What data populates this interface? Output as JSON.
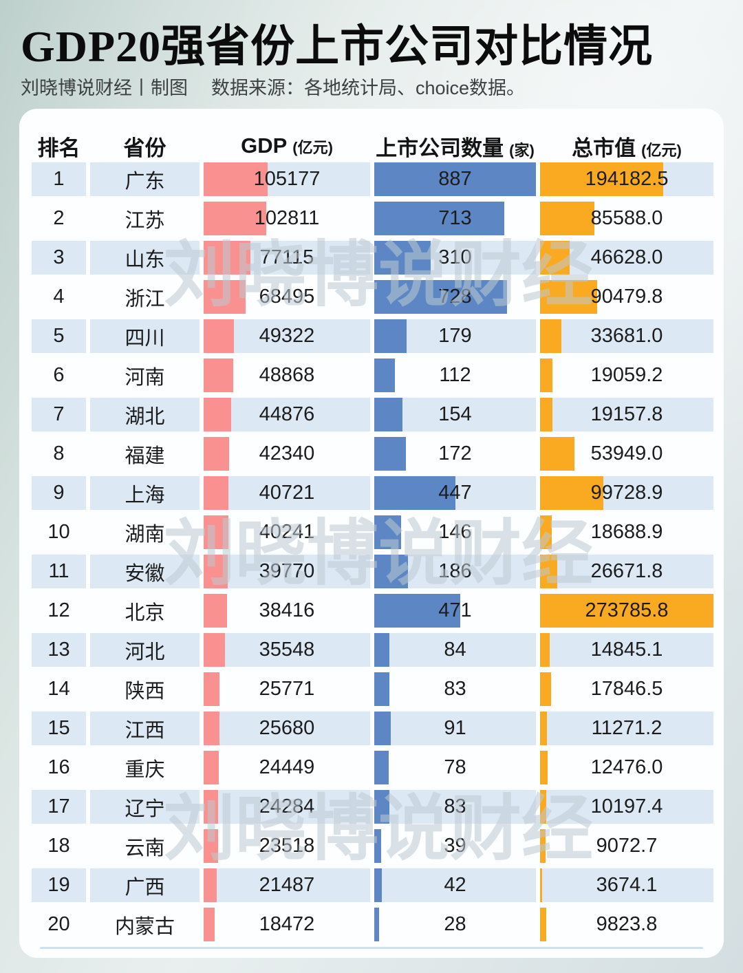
{
  "title": "GDP20强省份上市公司对比情况",
  "subtitle": {
    "author": "刘晓博说财经丨制图",
    "source": "数据来源：各地统计局、choice数据。"
  },
  "watermark": {
    "text": "刘晓博说财经"
  },
  "table_headers": {
    "rank": "排名",
    "province": "省份",
    "gdp_main": "GDP",
    "gdp_unit": "(亿元)",
    "companies_main": "上市公司数量",
    "companies_unit": "(家)",
    "market_cap_main": "总市值",
    "market_cap_unit": "(亿元)"
  },
  "colors": {
    "gdp_bar": "#f8918f",
    "companies_bar": "#5c87c4",
    "market_cap_bar": "#faaa20",
    "alt_row_background": "#dce8f4",
    "card_background": "#fdfeff"
  },
  "chart_data": {
    "type": "table",
    "columns": [
      "排名",
      "省份",
      "GDP (亿元)",
      "上市公司数量 (家)",
      "总市值 (亿元)"
    ],
    "bar_scale": {
      "value_axis_max": 273785.8,
      "companies_axis_max": 887
    },
    "rows": [
      {
        "rank": 1,
        "province": "广东",
        "gdp": 105177,
        "companies": 887,
        "market_cap": 194182.5
      },
      {
        "rank": 2,
        "province": "江苏",
        "gdp": 102811,
        "companies": 713,
        "market_cap": 85588.0
      },
      {
        "rank": 3,
        "province": "山东",
        "gdp": 77115,
        "companies": 310,
        "market_cap": 46628.0
      },
      {
        "rank": 4,
        "province": "浙江",
        "gdp": 68495,
        "companies": 728,
        "market_cap": 90479.8
      },
      {
        "rank": 5,
        "province": "四川",
        "gdp": 49322,
        "companies": 179,
        "market_cap": 33681.0
      },
      {
        "rank": 6,
        "province": "河南",
        "gdp": 48868,
        "companies": 112,
        "market_cap": 19059.2
      },
      {
        "rank": 7,
        "province": "湖北",
        "gdp": 44876,
        "companies": 154,
        "market_cap": 19157.8
      },
      {
        "rank": 8,
        "province": "福建",
        "gdp": 42340,
        "companies": 172,
        "market_cap": 53949.0
      },
      {
        "rank": 9,
        "province": "上海",
        "gdp": 40721,
        "companies": 447,
        "market_cap": 99728.9
      },
      {
        "rank": 10,
        "province": "湖南",
        "gdp": 40241,
        "companies": 146,
        "market_cap": 18688.9
      },
      {
        "rank": 11,
        "province": "安徽",
        "gdp": 39770,
        "companies": 186,
        "market_cap": 26671.8
      },
      {
        "rank": 12,
        "province": "北京",
        "gdp": 38416,
        "companies": 471,
        "market_cap": 273785.8
      },
      {
        "rank": 13,
        "province": "河北",
        "gdp": 35548,
        "companies": 84,
        "market_cap": 14845.1
      },
      {
        "rank": 14,
        "province": "陕西",
        "gdp": 25771,
        "companies": 83,
        "market_cap": 17846.5
      },
      {
        "rank": 15,
        "province": "江西",
        "gdp": 25680,
        "companies": 91,
        "market_cap": 11271.2
      },
      {
        "rank": 16,
        "province": "重庆",
        "gdp": 24449,
        "companies": 78,
        "market_cap": 12476.0
      },
      {
        "rank": 17,
        "province": "辽宁",
        "gdp": 24284,
        "companies": 83,
        "market_cap": 10197.4
      },
      {
        "rank": 18,
        "province": "云南",
        "gdp": 23518,
        "companies": 39,
        "market_cap": 9072.7
      },
      {
        "rank": 19,
        "province": "广西",
        "gdp": 21487,
        "companies": 42,
        "market_cap": 3674.1
      },
      {
        "rank": 20,
        "province": "内蒙古",
        "gdp": 18472,
        "companies": 28,
        "market_cap": 9823.8
      }
    ]
  }
}
